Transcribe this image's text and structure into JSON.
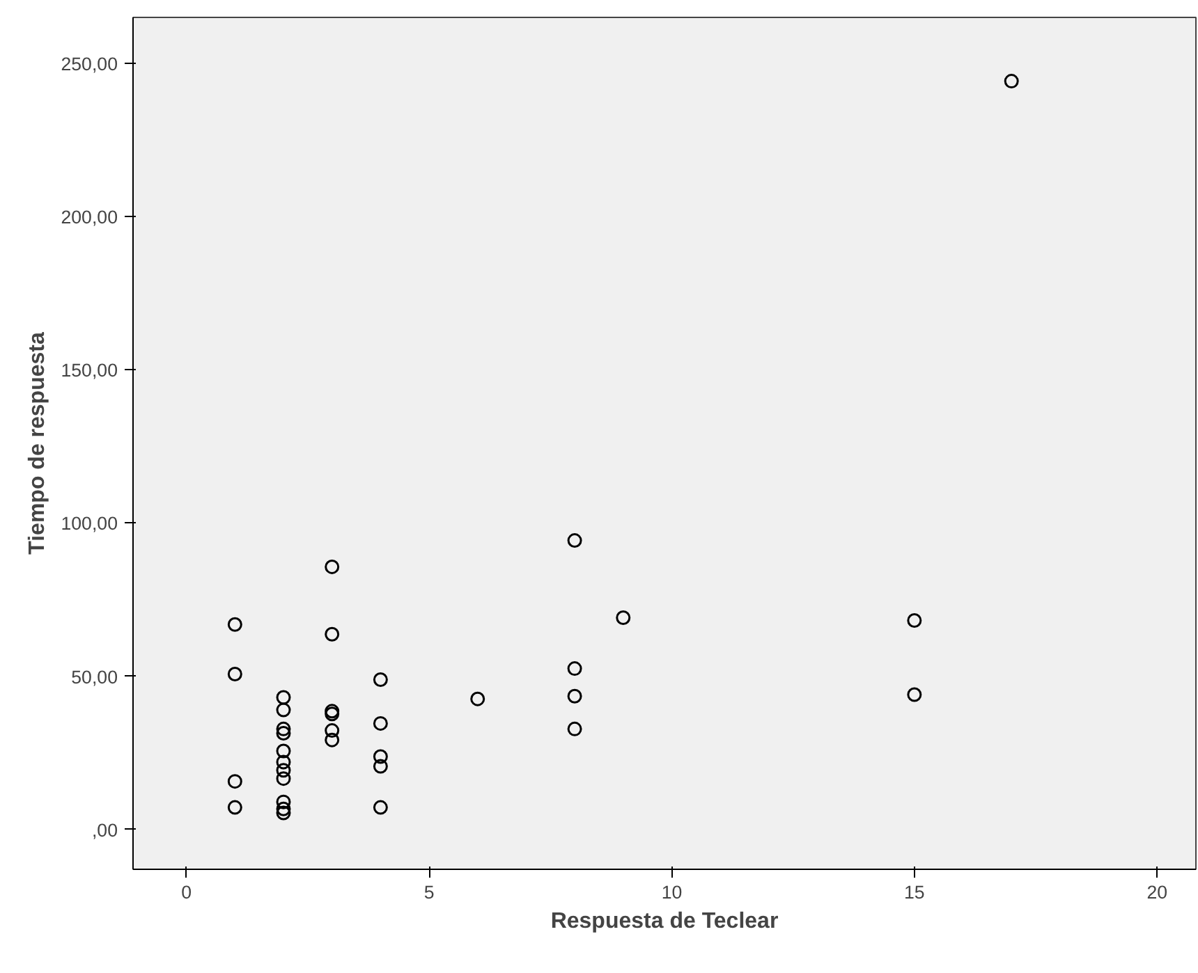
{
  "chart_data": {
    "type": "scatter",
    "xlabel": "Respuesta de Teclear",
    "ylabel": "Tiempo de respuesta",
    "x": [
      1,
      1,
      1,
      1,
      2,
      2,
      2,
      2,
      2,
      2,
      2,
      2,
      2,
      2,
      2,
      3,
      3,
      3,
      3,
      3,
      3,
      4,
      4,
      4,
      4,
      4,
      6,
      8,
      8,
      8,
      8,
      9,
      15,
      15,
      17
    ],
    "values": [
      66.9,
      50.7,
      15.7,
      7.2,
      43.1,
      39.0,
      32.8,
      31.4,
      25.6,
      22.0,
      19.3,
      16.6,
      9.0,
      6.7,
      5.4,
      85.7,
      63.7,
      38.6,
      37.7,
      32.3,
      29.2,
      48.9,
      34.6,
      23.8,
      20.6,
      7.2,
      42.6,
      94.3,
      52.5,
      43.5,
      32.8,
      69.1,
      68.2,
      44.0,
      244.2
    ],
    "color": "#000000",
    "marker": "circle",
    "grid": false,
    "xlim": [
      -1.1,
      20.8
    ],
    "ylim": [
      -13,
      265
    ],
    "xticks": [
      0,
      5,
      10,
      15,
      20
    ],
    "yticks": [
      {
        "value": 0,
        "label": ",00"
      },
      {
        "value": 50,
        "label": "50,00"
      },
      {
        "value": 100,
        "label": "100,00"
      },
      {
        "value": 150,
        "label": "150,00"
      },
      {
        "value": 200,
        "label": "200,00"
      },
      {
        "value": 250,
        "label": "250,00"
      }
    ]
  }
}
